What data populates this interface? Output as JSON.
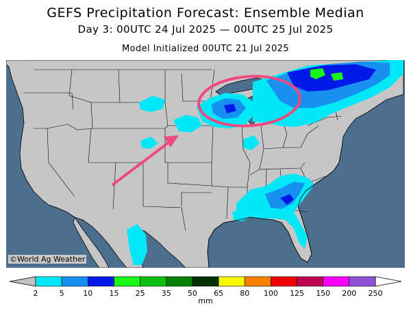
{
  "title": "GEFS Precipitation Forecast: Ensemble Median",
  "subtitle": "Day 3: 00UTC 24 Jul 2025 — 00UTC 25 Jul 2025",
  "init_text": "Model Initialized 00UTC 21 Jul 2025",
  "credit": "©World Ag Weather",
  "legend": {
    "unit": "mm",
    "ticks": [
      "2",
      "5",
      "10",
      "15",
      "25",
      "35",
      "50",
      "65",
      "80",
      "100",
      "125",
      "150",
      "200",
      "250"
    ],
    "colors": [
      "#00e8f8",
      "#1890f0",
      "#0018e8",
      "#18f818",
      "#10c010",
      "#088008",
      "#003000",
      "#f8f800",
      "#f88000",
      "#f00000",
      "#c00050",
      "#f800f8",
      "#9050d8"
    ],
    "under_color": "#c0c0c0",
    "over_color": "#ffffff"
  },
  "map_colors": {
    "ocean": "#4d6f8f",
    "land": "#c6c6c6",
    "border": "#000000",
    "annotation": "#ef4a7f"
  }
}
